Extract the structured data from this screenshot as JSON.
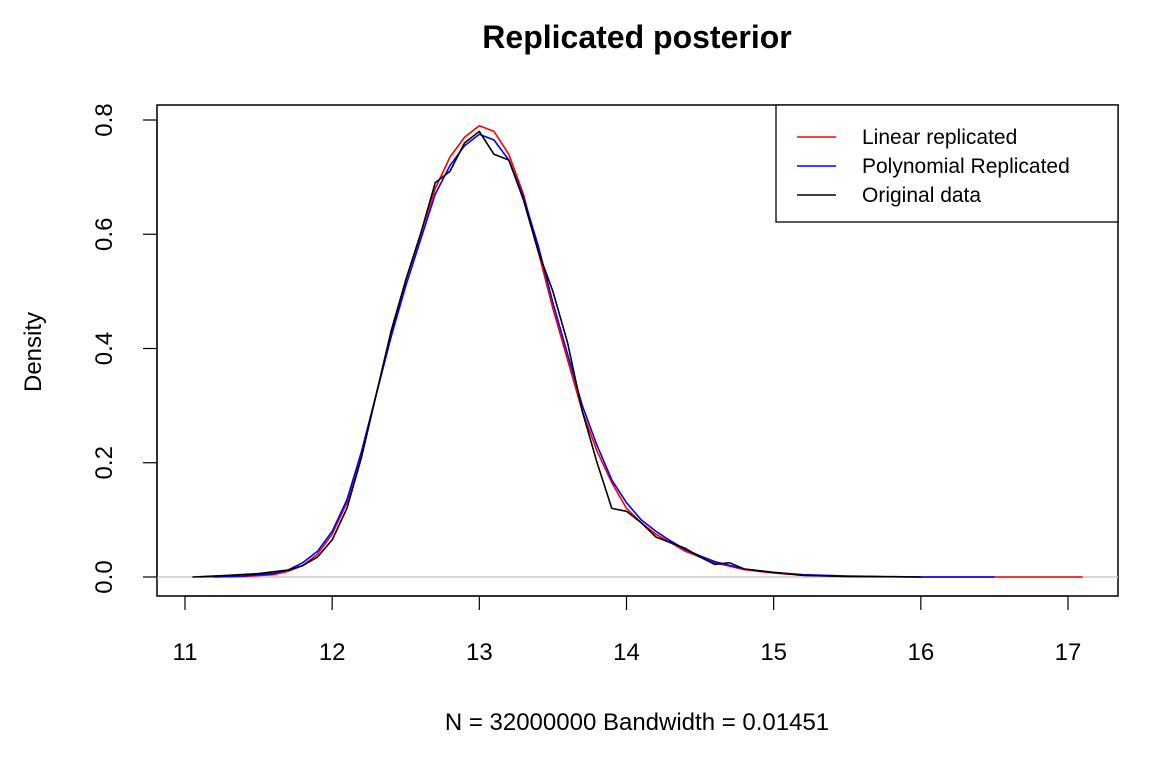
{
  "chart_data": {
    "type": "line",
    "title": "Replicated posterior",
    "xlabel": "N = 32000000   Bandwidth = 0.01451",
    "ylabel": "Density",
    "xlim": [
      11,
      17
    ],
    "ylim": [
      0,
      0.8
    ],
    "x_ticks": [
      "11",
      "12",
      "13",
      "14",
      "15",
      "16",
      "17"
    ],
    "y_ticks": [
      "0.0",
      "0.2",
      "0.4",
      "0.6",
      "0.8"
    ],
    "legend_position": "top-right",
    "zero_line": true,
    "series": [
      {
        "name": "Linear replicated",
        "color": "#ff0000",
        "points": [
          [
            11.1,
            0.0
          ],
          [
            11.4,
            0.001
          ],
          [
            11.6,
            0.004
          ],
          [
            11.7,
            0.01
          ],
          [
            11.8,
            0.02
          ],
          [
            11.9,
            0.04
          ],
          [
            12.0,
            0.075
          ],
          [
            12.1,
            0.13
          ],
          [
            12.2,
            0.22
          ],
          [
            12.3,
            0.32
          ],
          [
            12.4,
            0.42
          ],
          [
            12.5,
            0.52
          ],
          [
            12.6,
            0.6
          ],
          [
            12.7,
            0.68
          ],
          [
            12.8,
            0.735
          ],
          [
            12.9,
            0.77
          ],
          [
            13.0,
            0.79
          ],
          [
            13.1,
            0.78
          ],
          [
            13.2,
            0.74
          ],
          [
            13.3,
            0.67
          ],
          [
            13.4,
            0.57
          ],
          [
            13.5,
            0.47
          ],
          [
            13.6,
            0.38
          ],
          [
            13.7,
            0.29
          ],
          [
            13.8,
            0.22
          ],
          [
            13.9,
            0.165
          ],
          [
            14.0,
            0.12
          ],
          [
            14.1,
            0.095
          ],
          [
            14.2,
            0.075
          ],
          [
            14.3,
            0.06
          ],
          [
            14.4,
            0.045
          ],
          [
            14.5,
            0.035
          ],
          [
            14.6,
            0.025
          ],
          [
            14.8,
            0.013
          ],
          [
            15.0,
            0.007
          ],
          [
            15.2,
            0.003
          ],
          [
            15.5,
            0.001
          ],
          [
            16.0,
            0.0
          ],
          [
            16.5,
            0.0
          ],
          [
            17.1,
            0.0
          ]
        ]
      },
      {
        "name": "Polynomial Replicated",
        "color": "#0000ff",
        "points": [
          [
            11.2,
            0.0
          ],
          [
            11.4,
            0.002
          ],
          [
            11.6,
            0.006
          ],
          [
            11.7,
            0.012
          ],
          [
            11.8,
            0.025
          ],
          [
            11.9,
            0.045
          ],
          [
            12.0,
            0.08
          ],
          [
            12.1,
            0.135
          ],
          [
            12.2,
            0.22
          ],
          [
            12.3,
            0.32
          ],
          [
            12.4,
            0.42
          ],
          [
            12.5,
            0.51
          ],
          [
            12.6,
            0.59
          ],
          [
            12.7,
            0.67
          ],
          [
            12.8,
            0.72
          ],
          [
            12.9,
            0.755
          ],
          [
            13.0,
            0.775
          ],
          [
            13.1,
            0.765
          ],
          [
            13.2,
            0.73
          ],
          [
            13.3,
            0.665
          ],
          [
            13.4,
            0.58
          ],
          [
            13.5,
            0.48
          ],
          [
            13.6,
            0.39
          ],
          [
            13.7,
            0.3
          ],
          [
            13.8,
            0.23
          ],
          [
            13.9,
            0.17
          ],
          [
            14.0,
            0.13
          ],
          [
            14.1,
            0.1
          ],
          [
            14.2,
            0.08
          ],
          [
            14.3,
            0.063
          ],
          [
            14.4,
            0.048
          ],
          [
            14.5,
            0.037
          ],
          [
            14.6,
            0.027
          ],
          [
            14.8,
            0.014
          ],
          [
            15.0,
            0.008
          ],
          [
            15.2,
            0.004
          ],
          [
            15.5,
            0.0015
          ],
          [
            16.0,
            0.0
          ],
          [
            16.5,
            0.0
          ]
        ]
      },
      {
        "name": "Original data",
        "color": "#000000",
        "points": [
          [
            11.05,
            0.0
          ],
          [
            11.3,
            0.003
          ],
          [
            11.5,
            0.006
          ],
          [
            11.7,
            0.012
          ],
          [
            11.8,
            0.02
          ],
          [
            11.9,
            0.035
          ],
          [
            12.0,
            0.065
          ],
          [
            12.1,
            0.12
          ],
          [
            12.2,
            0.21
          ],
          [
            12.3,
            0.32
          ],
          [
            12.4,
            0.43
          ],
          [
            12.5,
            0.52
          ],
          [
            12.6,
            0.6
          ],
          [
            12.7,
            0.69
          ],
          [
            12.8,
            0.71
          ],
          [
            12.9,
            0.76
          ],
          [
            13.0,
            0.78
          ],
          [
            13.1,
            0.74
          ],
          [
            13.2,
            0.73
          ],
          [
            13.3,
            0.66
          ],
          [
            13.4,
            0.57
          ],
          [
            13.5,
            0.5
          ],
          [
            13.6,
            0.41
          ],
          [
            13.7,
            0.29
          ],
          [
            13.8,
            0.2
          ],
          [
            13.9,
            0.12
          ],
          [
            14.0,
            0.115
          ],
          [
            14.1,
            0.095
          ],
          [
            14.2,
            0.07
          ],
          [
            14.3,
            0.06
          ],
          [
            14.4,
            0.05
          ],
          [
            14.5,
            0.035
          ],
          [
            14.6,
            0.022
          ],
          [
            14.7,
            0.025
          ],
          [
            14.8,
            0.014
          ],
          [
            15.0,
            0.008
          ],
          [
            15.2,
            0.003
          ],
          [
            15.5,
            0.001
          ],
          [
            16.0,
            0.0
          ]
        ]
      }
    ]
  }
}
